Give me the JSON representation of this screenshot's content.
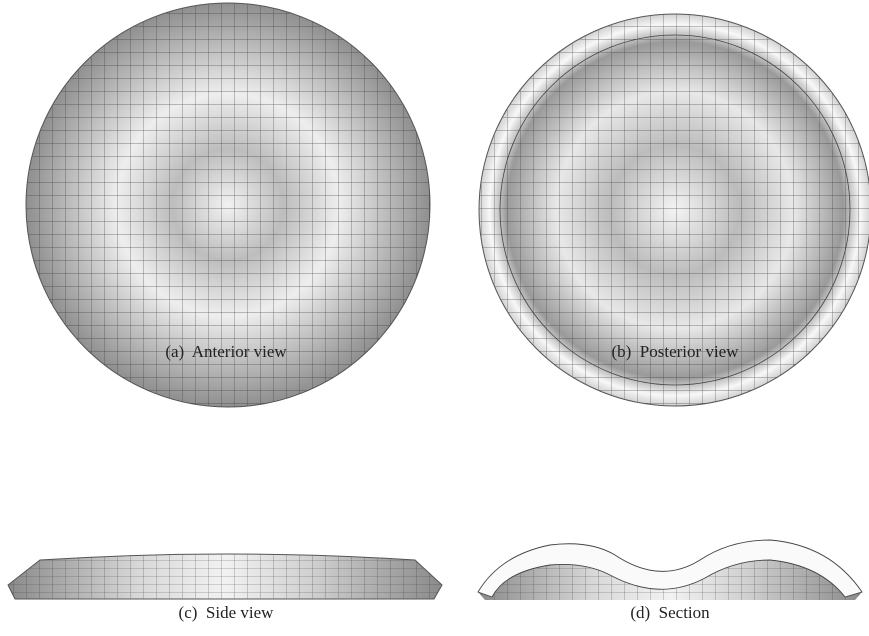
{
  "figure": {
    "panels": [
      {
        "caption": "(a)  Anterior view"
      },
      {
        "caption": "(b)  Posterior view"
      },
      {
        "caption": "(c)  Side view"
      },
      {
        "caption": "(d)  Section"
      }
    ]
  }
}
